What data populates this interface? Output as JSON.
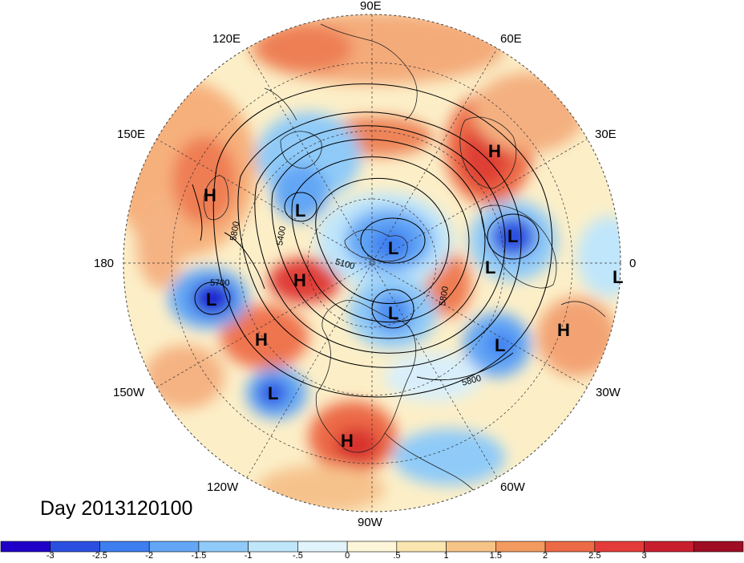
{
  "title": "Day 2013120100",
  "longitude_labels": {
    "e90": "90E",
    "e120": "120E",
    "e60": "60E",
    "e150": "150E",
    "e30": "30E",
    "e180": "180",
    "e0": "0",
    "w150": "150W",
    "w30": "30W",
    "w120": "120W",
    "w60": "60W",
    "w90": "90W"
  },
  "pressure_centers": [
    {
      "type": "H",
      "label": "H"
    },
    {
      "type": "H",
      "label": "H"
    },
    {
      "type": "H",
      "label": "H"
    },
    {
      "type": "H",
      "label": "H"
    },
    {
      "type": "H",
      "label": "H"
    },
    {
      "type": "H",
      "label": "H"
    },
    {
      "type": "L",
      "label": "L"
    },
    {
      "type": "L",
      "label": "L"
    },
    {
      "type": "L",
      "label": "L"
    },
    {
      "type": "L",
      "label": "L"
    },
    {
      "type": "L",
      "label": "L"
    },
    {
      "type": "L",
      "label": "L"
    },
    {
      "type": "L",
      "label": "L"
    },
    {
      "type": "L",
      "label": "L"
    },
    {
      "type": "L",
      "label": "L"
    }
  ],
  "contour_labels": [
    "5800",
    "5400",
    "5100",
    "5700",
    "5800",
    "5800"
  ],
  "colorbar": {
    "colors": [
      "#1f00c8",
      "#2a4fe0",
      "#3d7ef0",
      "#62a6f5",
      "#8fcaf8",
      "#bfe6fb",
      "#e2f4fb",
      "#fdf6d8",
      "#fbe6b0",
      "#f6c487",
      "#f29a5f",
      "#ec6a46",
      "#e43c3a",
      "#c81e2e",
      "#9e0d24"
    ],
    "labels": [
      "-3",
      "-2.5",
      "-2",
      "-1.5",
      "-1",
      "-.5",
      "0",
      ".5",
      "1",
      "1.5",
      "2",
      "2.5",
      "3"
    ]
  }
}
